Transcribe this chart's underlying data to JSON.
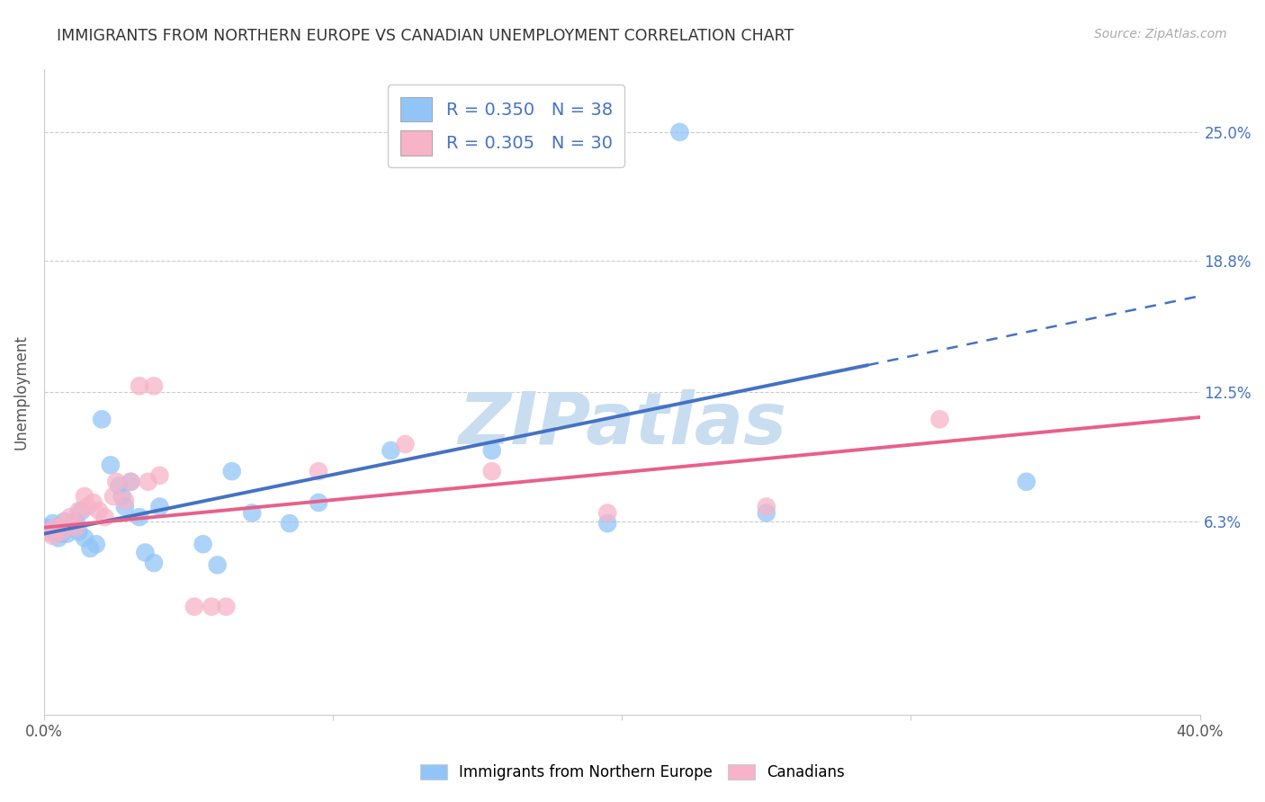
{
  "title": "IMMIGRANTS FROM NORTHERN EUROPE VS CANADIAN UNEMPLOYMENT CORRELATION CHART",
  "source": "Source: ZipAtlas.com",
  "ylabel": "Unemployment",
  "ytick_labels": [
    "25.0%",
    "18.8%",
    "12.5%",
    "6.3%"
  ],
  "ytick_values": [
    0.25,
    0.188,
    0.125,
    0.063
  ],
  "xlim": [
    0.0,
    0.4
  ],
  "ylim": [
    -0.03,
    0.28
  ],
  "legend_r1": "R = 0.350",
  "legend_n1": "N = 38",
  "legend_r2": "R = 0.305",
  "legend_n2": "N = 30",
  "blue_color": "#92c5f7",
  "pink_color": "#f7b3c8",
  "blue_line_color": "#4472c4",
  "pink_line_color": "#e8608a",
  "label_color": "#4472c4",
  "blue_scatter": [
    [
      0.001,
      0.06
    ],
    [
      0.002,
      0.058
    ],
    [
      0.003,
      0.062
    ],
    [
      0.004,
      0.06
    ],
    [
      0.005,
      0.055
    ],
    [
      0.006,
      0.057
    ],
    [
      0.007,
      0.063
    ],
    [
      0.008,
      0.057
    ],
    [
      0.009,
      0.06
    ],
    [
      0.01,
      0.062
    ],
    [
      0.011,
      0.063
    ],
    [
      0.012,
      0.058
    ],
    [
      0.013,
      0.068
    ],
    [
      0.014,
      0.055
    ],
    [
      0.016,
      0.05
    ],
    [
      0.018,
      0.052
    ],
    [
      0.02,
      0.112
    ],
    [
      0.023,
      0.09
    ],
    [
      0.026,
      0.08
    ],
    [
      0.027,
      0.075
    ],
    [
      0.028,
      0.07
    ],
    [
      0.03,
      0.082
    ],
    [
      0.033,
      0.065
    ],
    [
      0.035,
      0.048
    ],
    [
      0.038,
      0.043
    ],
    [
      0.04,
      0.07
    ],
    [
      0.055,
      0.052
    ],
    [
      0.06,
      0.042
    ],
    [
      0.065,
      0.087
    ],
    [
      0.072,
      0.067
    ],
    [
      0.085,
      0.062
    ],
    [
      0.095,
      0.072
    ],
    [
      0.12,
      0.097
    ],
    [
      0.155,
      0.097
    ],
    [
      0.195,
      0.062
    ],
    [
      0.25,
      0.067
    ],
    [
      0.22,
      0.25
    ],
    [
      0.34,
      0.082
    ]
  ],
  "pink_scatter": [
    [
      0.001,
      0.058
    ],
    [
      0.003,
      0.056
    ],
    [
      0.004,
      0.06
    ],
    [
      0.006,
      0.058
    ],
    [
      0.007,
      0.062
    ],
    [
      0.009,
      0.065
    ],
    [
      0.011,
      0.06
    ],
    [
      0.012,
      0.068
    ],
    [
      0.014,
      0.075
    ],
    [
      0.015,
      0.07
    ],
    [
      0.017,
      0.072
    ],
    [
      0.019,
      0.068
    ],
    [
      0.021,
      0.065
    ],
    [
      0.024,
      0.075
    ],
    [
      0.025,
      0.082
    ],
    [
      0.028,
      0.073
    ],
    [
      0.03,
      0.082
    ],
    [
      0.033,
      0.128
    ],
    [
      0.036,
      0.082
    ],
    [
      0.038,
      0.128
    ],
    [
      0.04,
      0.085
    ],
    [
      0.052,
      0.022
    ],
    [
      0.058,
      0.022
    ],
    [
      0.063,
      0.022
    ],
    [
      0.095,
      0.087
    ],
    [
      0.125,
      0.1
    ],
    [
      0.155,
      0.087
    ],
    [
      0.195,
      0.067
    ],
    [
      0.25,
      0.07
    ],
    [
      0.31,
      0.112
    ]
  ],
  "blue_trendline_solid": [
    [
      0.0,
      0.057
    ],
    [
      0.285,
      0.138
    ]
  ],
  "blue_trendline_dashed": [
    [
      0.285,
      0.138
    ],
    [
      0.42,
      0.177
    ]
  ],
  "pink_trendline": [
    [
      0.0,
      0.06
    ],
    [
      0.4,
      0.113
    ]
  ],
  "watermark": "ZIPatlas",
  "watermark_color": "#c8ddf0",
  "background_color": "#ffffff",
  "grid_color": "#cccccc"
}
